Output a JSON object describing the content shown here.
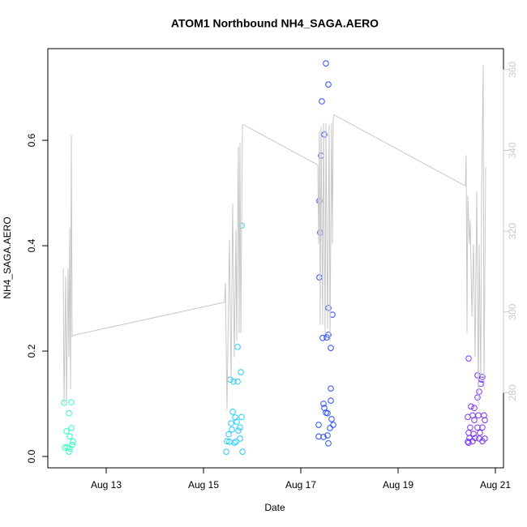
{
  "chart_data": {
    "type": "scatter",
    "title": "ATOM1 Northbound NH4_SAGA.AERO",
    "x_label": "Date",
    "y_label": "NH4_SAGA.AERO",
    "xlim": [
      11.8,
      21.167
    ],
    "xticks": [
      {
        "value": 13,
        "label": "Aug 13"
      },
      {
        "value": 15,
        "label": "Aug 15"
      },
      {
        "value": 17,
        "label": "Aug 17"
      },
      {
        "value": 19,
        "label": "Aug 19"
      },
      {
        "value": 21,
        "label": "Aug 21"
      }
    ],
    "ylim": [
      -0.0215,
      0.774
    ],
    "yticks": [
      {
        "value": 0,
        "label": "0.0"
      },
      0.2,
      0.4,
      0.6
    ],
    "y2lim": [
      261.4,
      365.2
    ],
    "y2ticks": [
      280,
      300,
      320,
      340,
      360
    ],
    "y2_tick_color": "#c8c8c8",
    "series": [
      {
        "type": "scatter",
        "color": "#2effc0",
        "x": [
          12.133,
          12.283,
          12.183,
          12.233,
          12.283,
          12.25,
          12.15,
          12.2,
          12.25,
          12.233,
          12.3,
          12.317
        ],
        "values": [
          0.102,
          0.103,
          0.048,
          0.082,
          0.054,
          0.038,
          0.017,
          0.018,
          0.015,
          0.009,
          0.022,
          0.028
        ]
      },
      {
        "type": "scatter",
        "color": "#22ccff",
        "x": [
          15.783,
          15.7,
          15.767,
          15.55,
          15.617,
          15.7,
          15.6,
          15.65,
          15.783,
          15.567,
          15.683,
          15.75,
          15.717,
          15.517,
          15.483,
          15.533,
          15.667,
          15.75,
          15.467,
          15.8,
          15.583,
          15.633
        ],
        "values": [
          0.438,
          0.208,
          0.16,
          0.146,
          0.142,
          0.142,
          0.085,
          0.074,
          0.075,
          0.063,
          0.066,
          0.055,
          0.049,
          0.042,
          0.029,
          0.028,
          0.028,
          0.034,
          0.009,
          0.009,
          0.051,
          0.026
        ]
      },
      {
        "type": "scatter",
        "color": "#2a4dff",
        "x": [
          17.517,
          17.567,
          17.433,
          17.483,
          17.417,
          17.383,
          17.4,
          17.383,
          17.567,
          17.65,
          17.567,
          17.533,
          17.45,
          17.617,
          17.617,
          17.617,
          17.467,
          17.483,
          17.517,
          17.55,
          17.633,
          17.667,
          17.6,
          17.367,
          17.55,
          17.467,
          17.367,
          17.567
        ],
        "values": [
          0.746,
          0.706,
          0.674,
          0.611,
          0.571,
          0.485,
          0.425,
          0.34,
          0.282,
          0.269,
          0.231,
          0.226,
          0.225,
          0.206,
          0.129,
          0.106,
          0.1,
          0.092,
          0.083,
          0.082,
          0.071,
          0.06,
          0.054,
          0.06,
          0.04,
          0.037,
          0.038,
          0.025
        ]
      },
      {
        "type": "scatter",
        "color": "#7a33ff",
        "x": [
          20.45,
          20.633,
          20.733,
          20.717,
          20.7,
          20.667,
          20.633,
          20.5,
          20.567,
          20.433,
          20.533,
          20.65,
          20.767,
          20.783,
          20.567,
          20.483,
          20.633,
          20.733,
          20.45,
          20.55,
          20.683,
          20.467,
          20.583,
          20.667,
          20.783,
          20.433,
          20.533,
          20.733,
          20.45
        ],
        "values": [
          0.186,
          0.154,
          0.151,
          0.146,
          0.138,
          0.123,
          0.112,
          0.095,
          0.092,
          0.075,
          0.078,
          0.078,
          0.078,
          0.069,
          0.069,
          0.055,
          0.055,
          0.055,
          0.045,
          0.043,
          0.045,
          0.035,
          0.035,
          0.034,
          0.034,
          0.028,
          0.029,
          0.029,
          0.026
        ]
      },
      {
        "type": "line",
        "axis": "y2",
        "color": "#c8c8c8",
        "x": [
          12.117,
          12.133,
          12.167,
          12.183,
          12.217,
          12.233,
          12.25,
          12.267,
          12.283,
          12.3,
          12.317,
          15.433,
          15.45,
          15.483,
          15.533,
          15.567,
          15.6,
          15.633,
          15.667,
          15.683,
          15.717,
          15.733,
          15.75,
          15.767,
          15.8,
          15.817,
          17.35,
          17.367,
          17.383,
          17.4,
          17.417,
          17.45,
          17.467,
          17.5,
          17.517,
          17.55,
          17.583,
          17.6,
          17.633,
          17.65,
          17.667,
          17.683,
          20.383,
          20.4,
          20.417,
          20.433,
          20.467,
          20.483,
          20.517,
          20.55,
          20.583,
          20.617,
          20.65,
          20.667,
          20.7,
          20.717,
          20.75,
          20.767,
          20.8
        ],
        "values": [
          310.8,
          277.2,
          308.8,
          276.8,
          310.8,
          288.8,
          320.8,
          280.8,
          343.8,
          293.8,
          294.2,
          302.4,
          307.2,
          275.8,
          317.8,
          282.8,
          326.8,
          288.8,
          320.4,
          292.8,
          340.8,
          294.8,
          341.8,
          294.8,
          346.2,
          346.4,
          336.4,
          316.8,
          344.8,
          296.8,
          345.8,
          296.8,
          346.8,
          294.8,
          346.8,
          295.8,
          346.4,
          292.8,
          346.8,
          316.8,
          347.8,
          348.8,
          331.2,
          338.8,
          294.8,
          328.8,
          316.8,
          322.8,
          298.8,
          316.8,
          288.8,
          329.8,
          276.8,
          316.8,
          282.8,
          328.8,
          361.2,
          280.8,
          335.8
        ]
      }
    ]
  }
}
